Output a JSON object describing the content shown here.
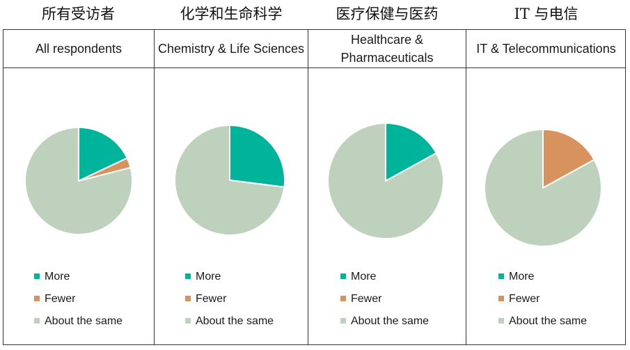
{
  "chinese_titles": [
    "所有受访者",
    "化学和生命科学",
    "医疗保健与医药",
    "IT 与电信"
  ],
  "colors": {
    "more": "#00b49c",
    "fewer": "#d8925e",
    "same": "#bdd1bd"
  },
  "chart_data": [
    {
      "type": "pie",
      "title": "All respondents",
      "labels": [
        "More",
        "Fewer",
        "About the same"
      ],
      "values": [
        18,
        3,
        79
      ]
    },
    {
      "type": "pie",
      "title": "Chemistry & Life Sciences",
      "labels": [
        "More",
        "Fewer",
        "About the same"
      ],
      "values": [
        27,
        0,
        73
      ]
    },
    {
      "type": "pie",
      "title": "Healthcare & Pharmaceuticals",
      "labels": [
        "More",
        "Fewer",
        "About the same"
      ],
      "values": [
        17,
        0,
        83
      ]
    },
    {
      "type": "pie",
      "title": "IT & Telecommunications",
      "labels": [
        "More",
        "Fewer",
        "About the same"
      ],
      "values": [
        0,
        17,
        83
      ]
    }
  ]
}
